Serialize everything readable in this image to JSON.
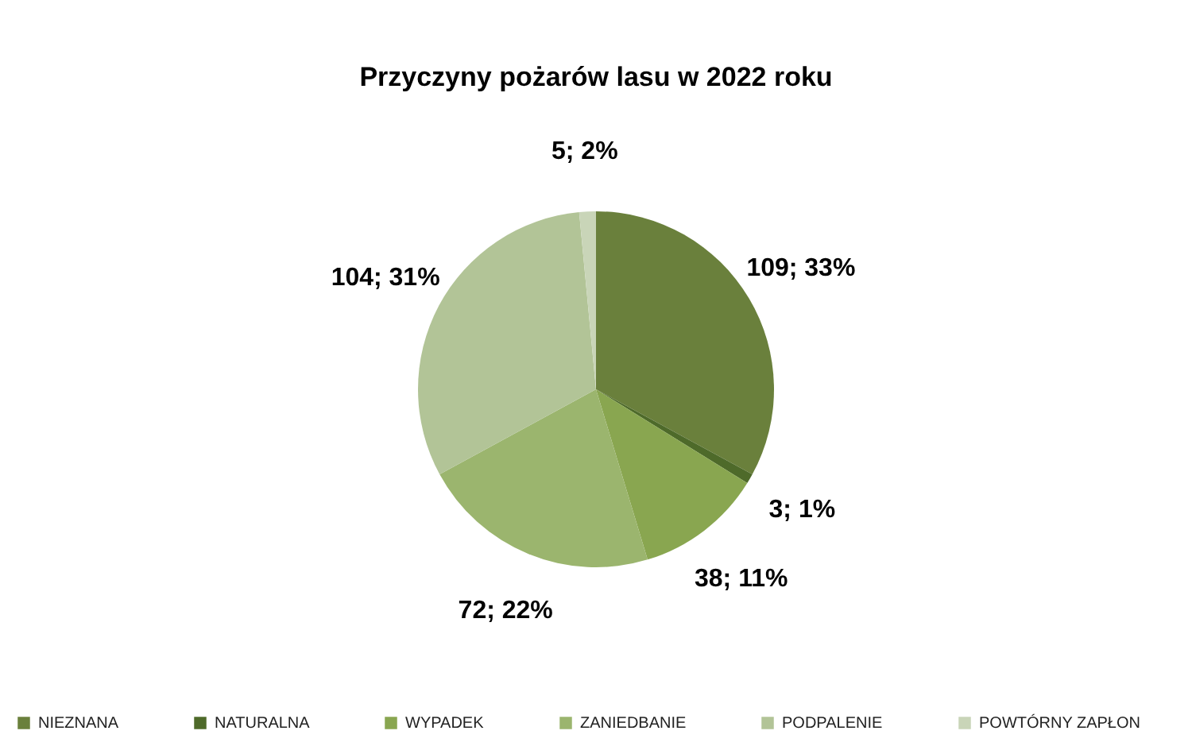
{
  "chart_data": {
    "type": "pie",
    "title": "Przyczyny pożarów lasu w 2022 roku",
    "categories": [
      "NIEZNANA",
      "NATURALNA",
      "WYPADEK",
      "ZANIEDBANIE",
      "PODPALENIE",
      "POWTÓRNY ZAPŁON"
    ],
    "values": [
      109,
      3,
      38,
      72,
      104,
      5
    ],
    "colors": [
      "#6a803c",
      "#4e6a2a",
      "#89a650",
      "#9bb56e",
      "#b2c497",
      "#c9d5b8"
    ],
    "value_labels": [
      "109; 33%",
      "3; 1%",
      "38; 11%",
      "72; 22%",
      "104; 31%",
      "5; 2%"
    ],
    "legend": "bottom"
  }
}
